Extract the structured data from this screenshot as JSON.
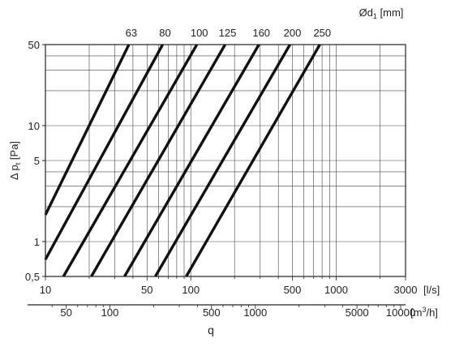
{
  "chart_data": {
    "type": "line",
    "x_scale": "log",
    "y_scale": "log",
    "xlim": [
      10,
      3000
    ],
    "ylim": [
      0.5,
      50
    ],
    "grid": true,
    "ylabel": "Δ pt [Pa]",
    "ylabel_main": "Δ p",
    "ylabel_sub": "t",
    "ylabel_unit": "[Pa]",
    "xlabel": "q",
    "x_unit": "[l/s]",
    "x2_unit": "[m³/h]",
    "x2_unit_main": "[m",
    "x2_unit_sup": "3",
    "x2_unit_end": "/h]",
    "series_header": "Ød1 [mm]",
    "series_header_main": "Ød",
    "series_header_sub": "1",
    "series_header_unit": "[mm]",
    "x_ticks": [
      "10",
      "50",
      "100",
      "500",
      "1000",
      "3000"
    ],
    "y_ticks": [
      "0,5",
      "1",
      "5",
      "10",
      "50"
    ],
    "x2_ticks": [
      "50",
      "100",
      "500",
      "1000",
      "5000",
      "10000"
    ],
    "series": [
      {
        "name": "63",
        "x": [
          10,
          37.5
        ],
        "y": [
          1.7,
          50
        ]
      },
      {
        "name": "80",
        "x": [
          10,
          64
        ],
        "y": [
          0.7,
          50
        ]
      },
      {
        "name": "100",
        "x": [
          13.3,
          110
        ],
        "y": [
          0.5,
          50
        ]
      },
      {
        "name": "125",
        "x": [
          20.7,
          172
        ],
        "y": [
          0.5,
          50
        ]
      },
      {
        "name": "160",
        "x": [
          35,
          294
        ],
        "y": [
          0.5,
          50
        ]
      },
      {
        "name": "200",
        "x": [
          57,
          481
        ],
        "y": [
          0.5,
          50
        ]
      },
      {
        "name": "250",
        "x": [
          93,
          772
        ],
        "y": [
          0.5,
          50
        ]
      }
    ]
  }
}
